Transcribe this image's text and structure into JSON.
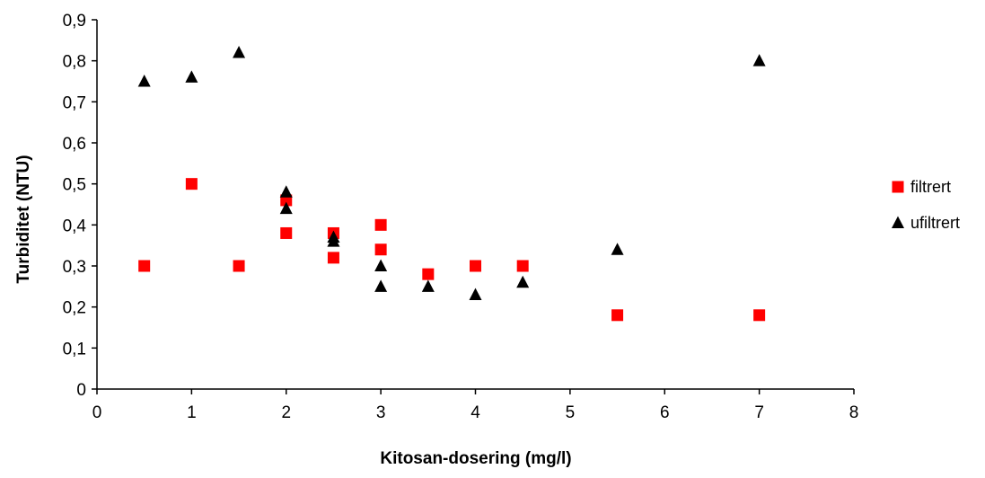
{
  "chart_data": {
    "type": "scatter",
    "title": "",
    "xlabel": "Kitosan-dosering (mg/l)",
    "ylabel": "Turbiditet (NTU)",
    "xlim": [
      0,
      8
    ],
    "ylim": [
      0,
      0.9
    ],
    "x_ticks": [
      0,
      1,
      2,
      3,
      4,
      5,
      6,
      7,
      8
    ],
    "y_ticks": [
      0,
      0.1,
      0.2,
      0.3,
      0.4,
      0.5,
      0.6,
      0.7,
      0.8,
      0.9
    ],
    "x_tick_labels": [
      "0",
      "1",
      "2",
      "3",
      "4",
      "5",
      "6",
      "7",
      "8"
    ],
    "y_tick_labels": [
      "0",
      "0,1",
      "0,2",
      "0,3",
      "0,4",
      "0,5",
      "0,6",
      "0,7",
      "0,8",
      "0,9"
    ],
    "grid": false,
    "legend_position": "right",
    "series": [
      {
        "name": "filtrert",
        "marker": "square",
        "color": "#ff0000",
        "x": [
          0.5,
          1,
          1.5,
          2,
          2,
          2.5,
          2.5,
          3,
          3,
          3.5,
          4,
          4.5,
          5.5,
          7
        ],
        "y": [
          0.3,
          0.5,
          0.3,
          0.46,
          0.38,
          0.38,
          0.32,
          0.4,
          0.34,
          0.28,
          0.3,
          0.3,
          0.18,
          0.18
        ]
      },
      {
        "name": "ufiltrert",
        "marker": "triangle",
        "color": "#000000",
        "x": [
          0.5,
          1,
          1.5,
          2,
          2,
          2.5,
          2.5,
          3,
          3,
          3.5,
          4,
          4.5,
          5.5,
          7
        ],
        "y": [
          0.75,
          0.76,
          0.82,
          0.48,
          0.44,
          0.37,
          0.36,
          0.3,
          0.25,
          0.25,
          0.23,
          0.26,
          0.34,
          0.8
        ]
      }
    ]
  }
}
